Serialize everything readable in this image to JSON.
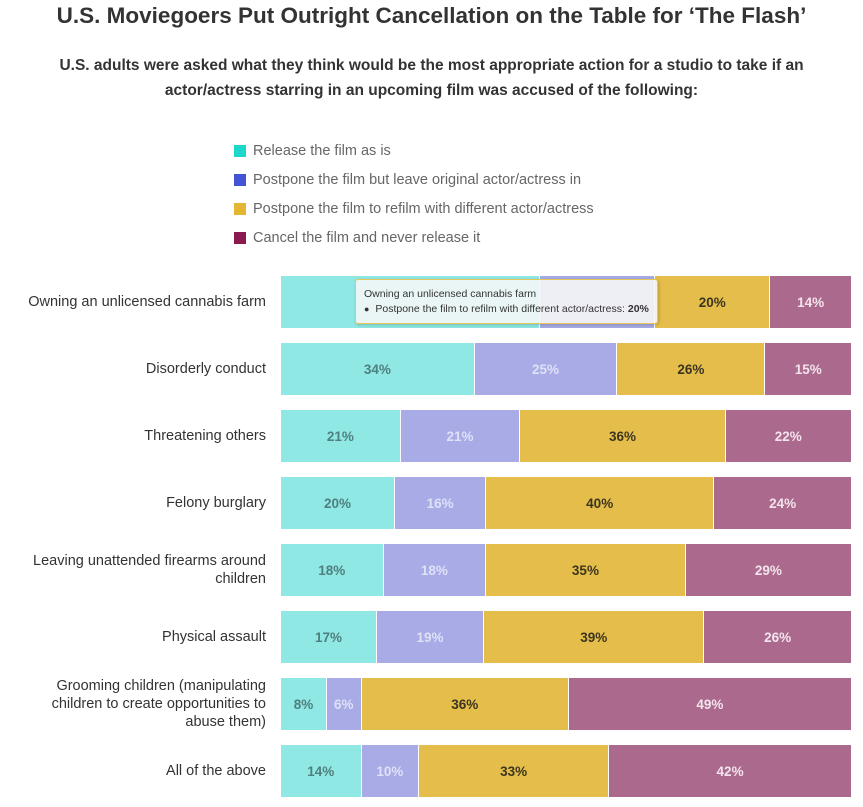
{
  "title": "U.S. Moviegoers Put Outright Cancellation on the Table for ‘The Flash’",
  "subtitle_lines": [
    "U.S. adults were asked what they think would be the most appropriate action for a studio to take if an",
    "actor/actress starring in an upcoming film was accused of the following:"
  ],
  "tooltip": {
    "category": "Owning an unlicensed cannabis farm",
    "bullet": "●",
    "series": "Postpone the film to refilm with different actor/actress",
    "value": "20%"
  },
  "chart_data": {
    "type": "bar",
    "orientation": "horizontal",
    "stacked": true,
    "percent": true,
    "title": "U.S. Moviegoers Put Outright Cancellation on the Table for ‘The Flash’",
    "legend_position": "top",
    "categories": [
      [
        "Owning an unlicensed cannabis farm"
      ],
      [
        "Disorderly conduct"
      ],
      [
        "Threatening others"
      ],
      [
        "Felony burglary"
      ],
      [
        "Leaving unattended firearms around",
        "children"
      ],
      [
        "Physical assault"
      ],
      [
        "Grooming children (manipulating",
        "children to create opportunities to",
        "abuse them)"
      ],
      [
        "All of the above"
      ]
    ],
    "series": [
      {
        "name": "Release the film as is",
        "color": "#8fe8e4",
        "label_color": "#4f7f7e",
        "values": [
          45,
          34,
          21,
          20,
          18,
          17,
          8,
          14
        ]
      },
      {
        "name": "Postpone the film but leave original actor/actress in",
        "color": "#a8abe6",
        "label_color": "#dfe1f7",
        "values": [
          20,
          25,
          21,
          16,
          18,
          19,
          6,
          10
        ]
      },
      {
        "name": "Postpone the film to refilm with different actor/actress",
        "color": "#e5bd4a",
        "label_color": "#3c3620",
        "values": [
          20,
          26,
          36,
          40,
          35,
          39,
          36,
          33
        ]
      },
      {
        "name": "Cancel the film and never release it",
        "color": "#ab6a8d",
        "label_color": "#f3e4ec",
        "values": [
          14,
          15,
          22,
          24,
          29,
          26,
          49,
          42
        ]
      }
    ],
    "legend_swatch_colors": [
      "#1ed6cc",
      "#4452d6",
      "#e2b630",
      "#8a1a50"
    ],
    "row_label_hidden": [
      [
        true,
        true,
        false,
        false
      ],
      [
        false,
        false,
        false,
        false
      ],
      [
        false,
        false,
        false,
        false
      ],
      [
        false,
        false,
        false,
        false
      ],
      [
        false,
        false,
        false,
        false
      ],
      [
        false,
        false,
        false,
        false
      ],
      [
        false,
        false,
        false,
        false
      ],
      [
        false,
        false,
        false,
        false
      ]
    ]
  }
}
